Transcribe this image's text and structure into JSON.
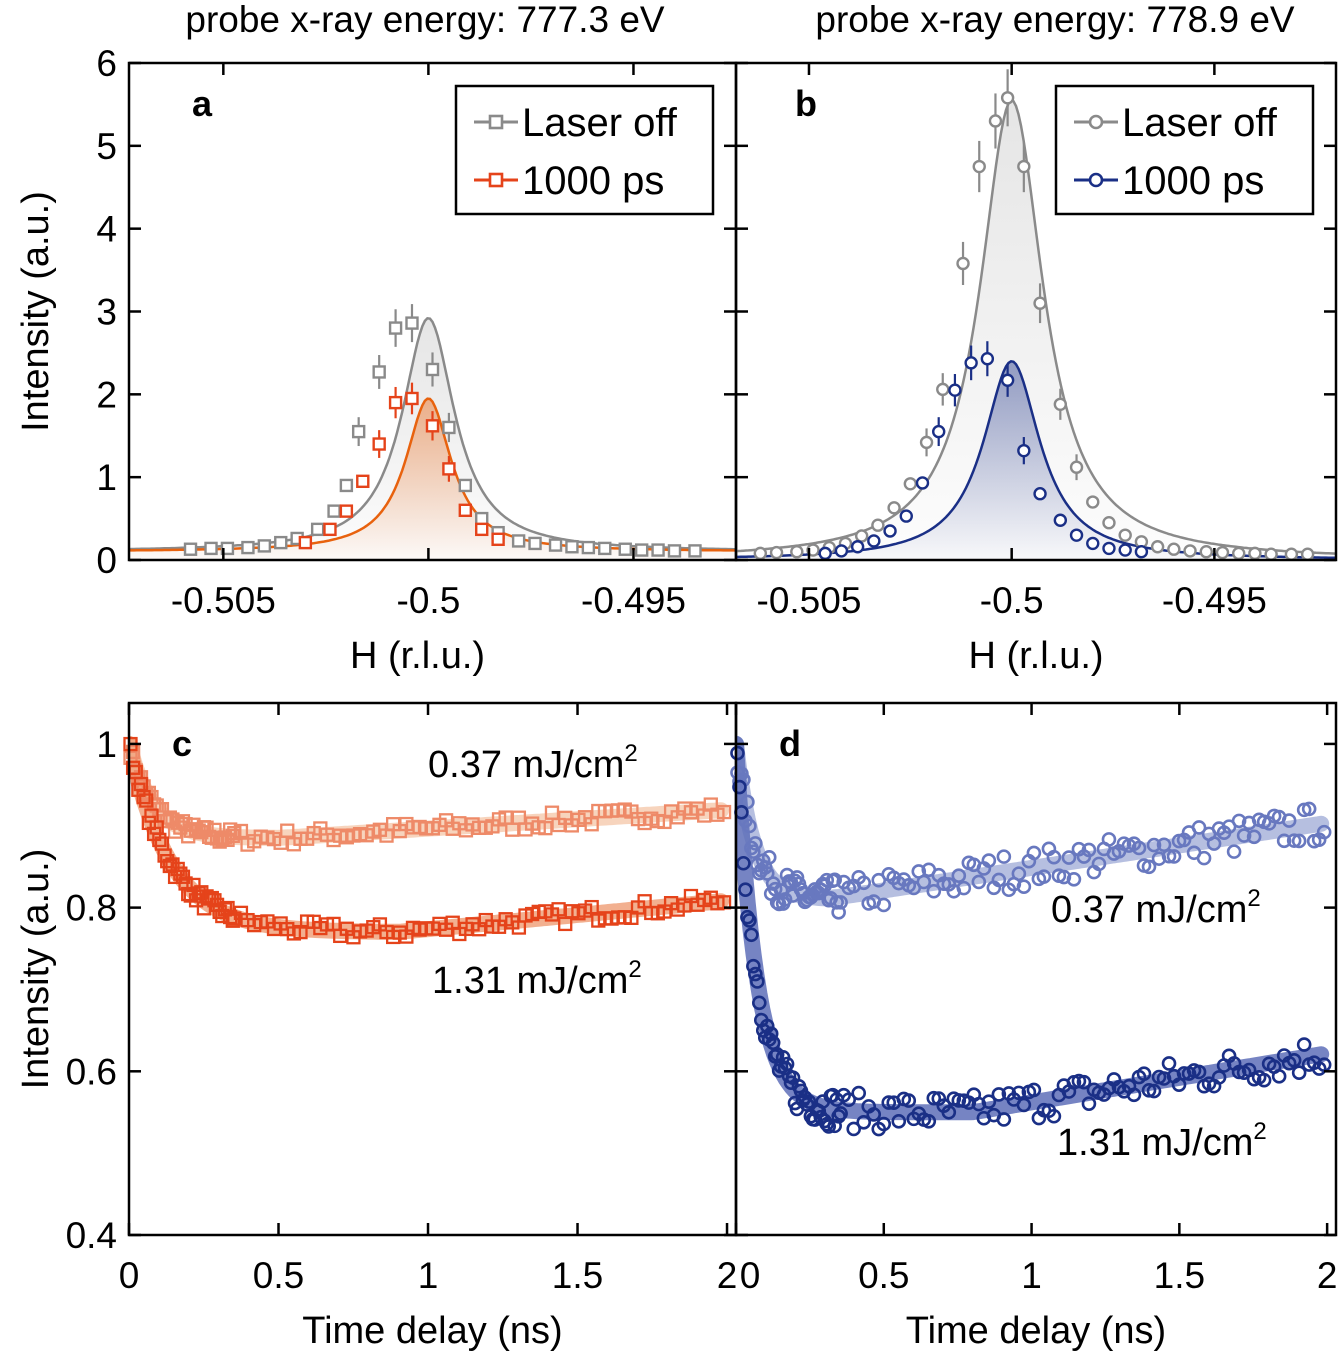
{
  "colors": {
    "gray": "#8a8a8a",
    "red": "#e5431a",
    "red_light": "#ee8a68",
    "orange_fit": "#e8620e",
    "navy": "#1a2f86",
    "blue_light": "#6878bf",
    "band_red_light": "#f6cdb2",
    "band_red": "#f0a27c",
    "band_blue_light": "#a9b4db",
    "band_blue": "#5e6fb8"
  },
  "chart_data": [
    {
      "id": "a",
      "type": "scatter",
      "panel_label": "a",
      "title": "probe x-ray energy: 777.3 eV",
      "xlabel": "H (r.l.u.)",
      "ylabel": "Intensity (a.u.)",
      "xlim": [
        -0.5073,
        -0.4925
      ],
      "ylim": [
        0,
        6
      ],
      "xticks": [
        -0.505,
        -0.5,
        -0.495
      ],
      "xtick_labels": [
        "-0.505",
        "-0.5",
        "-0.495"
      ],
      "yticks": [
        0,
        1,
        2,
        3,
        4,
        5,
        6
      ],
      "ytick_labels": [
        "0",
        "1",
        "2",
        "3",
        "4",
        "5",
        "6"
      ],
      "marker": "square",
      "legend": "top-right",
      "series": [
        {
          "name": "Laser off",
          "color": "gray",
          "fit": {
            "amp": 2.82,
            "center": -0.5,
            "gamma": 0.00078,
            "base": 0.1
          },
          "points": [
            [
              -0.5058,
              0.13
            ],
            [
              -0.5053,
              0.14
            ],
            [
              -0.5049,
              0.14
            ],
            [
              -0.5044,
              0.15
            ],
            [
              -0.504,
              0.17
            ],
            [
              -0.5036,
              0.21
            ],
            [
              -0.5032,
              0.26
            ],
            [
              -0.5027,
              0.37
            ],
            [
              -0.5023,
              0.59
            ],
            [
              -0.502,
              0.9
            ],
            [
              -0.5017,
              1.55
            ],
            [
              -0.5012,
              2.27
            ],
            [
              -0.5008,
              2.8
            ],
            [
              -0.5004,
              2.86
            ],
            [
              -0.4999,
              2.3
            ],
            [
              -0.4995,
              1.6
            ],
            [
              -0.4991,
              0.9
            ],
            [
              -0.4987,
              0.5
            ],
            [
              -0.4983,
              0.33
            ],
            [
              -0.4978,
              0.23
            ],
            [
              -0.4974,
              0.2
            ],
            [
              -0.4969,
              0.18
            ],
            [
              -0.4965,
              0.16
            ],
            [
              -0.4961,
              0.15
            ],
            [
              -0.4957,
              0.14
            ],
            [
              -0.4952,
              0.13
            ],
            [
              -0.4948,
              0.12
            ],
            [
              -0.4944,
              0.12
            ],
            [
              -0.494,
              0.11
            ],
            [
              -0.4935,
              0.11
            ]
          ]
        },
        {
          "name": "1000 ps",
          "color": "red",
          "fit": {
            "amp": 1.85,
            "center": -0.5,
            "gamma": 0.00068,
            "base": 0.1
          },
          "points": [
            [
              -0.503,
              0.21
            ],
            [
              -0.5024,
              0.37
            ],
            [
              -0.502,
              0.59
            ],
            [
              -0.5016,
              0.95
            ],
            [
              -0.5012,
              1.4
            ],
            [
              -0.5008,
              1.9
            ],
            [
              -0.5004,
              1.95
            ],
            [
              -0.4999,
              1.62
            ],
            [
              -0.4995,
              1.1
            ],
            [
              -0.4991,
              0.6
            ],
            [
              -0.4987,
              0.37
            ],
            [
              -0.4983,
              0.25
            ]
          ]
        }
      ]
    },
    {
      "id": "b",
      "type": "scatter",
      "panel_label": "b",
      "title": "probe x-ray energy: 778.9 eV",
      "xlabel": "H (r.l.u.)",
      "ylabel": "",
      "xlim": [
        -0.5068,
        -0.492
      ],
      "ylim": [
        0,
        6
      ],
      "xticks": [
        -0.505,
        -0.5,
        -0.495
      ],
      "xtick_labels": [
        "-0.505",
        "-0.5",
        "-0.495"
      ],
      "yticks": [
        0,
        1,
        2,
        3,
        4,
        5,
        6
      ],
      "marker": "circle",
      "legend": "top-right",
      "series": [
        {
          "name": "Laser off",
          "color": "gray",
          "fit": {
            "amp": 5.55,
            "center": -0.5,
            "gamma": 0.00095,
            "base": 0.0
          },
          "points": [
            [
              -0.5062,
              0.08
            ],
            [
              -0.5058,
              0.09
            ],
            [
              -0.5053,
              0.1
            ],
            [
              -0.5049,
              0.12
            ],
            [
              -0.5045,
              0.15
            ],
            [
              -0.5041,
              0.2
            ],
            [
              -0.5037,
              0.29
            ],
            [
              -0.5033,
              0.42
            ],
            [
              -0.5029,
              0.63
            ],
            [
              -0.5025,
              0.92
            ],
            [
              -0.5021,
              1.42
            ],
            [
              -0.5017,
              2.06
            ],
            [
              -0.5012,
              3.58
            ],
            [
              -0.5008,
              4.75
            ],
            [
              -0.5004,
              5.3
            ],
            [
              -0.5001,
              5.58
            ],
            [
              -0.4997,
              4.75
            ],
            [
              -0.4993,
              3.1
            ],
            [
              -0.4988,
              1.88
            ],
            [
              -0.4984,
              1.12
            ],
            [
              -0.498,
              0.7
            ],
            [
              -0.4976,
              0.45
            ],
            [
              -0.4972,
              0.3
            ],
            [
              -0.4968,
              0.22
            ],
            [
              -0.4964,
              0.16
            ],
            [
              -0.496,
              0.13
            ],
            [
              -0.4956,
              0.11
            ],
            [
              -0.4952,
              0.1
            ],
            [
              -0.4948,
              0.09
            ],
            [
              -0.4944,
              0.08
            ],
            [
              -0.494,
              0.08
            ],
            [
              -0.4936,
              0.07
            ],
            [
              -0.4931,
              0.07
            ],
            [
              -0.4927,
              0.07
            ]
          ]
        },
        {
          "name": "1000 ps",
          "color": "navy",
          "fit": {
            "amp": 2.4,
            "center": -0.5,
            "gamma": 0.00085,
            "base": 0.0
          },
          "points": [
            [
              -0.5046,
              0.08
            ],
            [
              -0.5042,
              0.11
            ],
            [
              -0.5038,
              0.16
            ],
            [
              -0.5034,
              0.23
            ],
            [
              -0.503,
              0.35
            ],
            [
              -0.5026,
              0.53
            ],
            [
              -0.5022,
              0.93
            ],
            [
              -0.5018,
              1.55
            ],
            [
              -0.5014,
              2.05
            ],
            [
              -0.501,
              2.38
            ],
            [
              -0.5006,
              2.43
            ],
            [
              -0.5001,
              2.17
            ],
            [
              -0.4997,
              1.32
            ],
            [
              -0.4993,
              0.8
            ],
            [
              -0.4988,
              0.48
            ],
            [
              -0.4984,
              0.3
            ],
            [
              -0.498,
              0.2
            ],
            [
              -0.4976,
              0.14
            ],
            [
              -0.4972,
              0.12
            ],
            [
              -0.4968,
              0.1
            ]
          ]
        }
      ]
    },
    {
      "id": "c",
      "type": "scatter",
      "panel_label": "c",
      "xlabel": "Time delay (ns)",
      "ylabel": "Intensity (a.u.)",
      "xlim": [
        0,
        2.03
      ],
      "ylim": [
        0.4,
        1.05
      ],
      "xticks": [
        0,
        0.5,
        1,
        1.5,
        2
      ],
      "xtick_labels": [
        "0",
        "0.5",
        "1",
        "1.5",
        "2"
      ],
      "yticks": [
        0.4,
        0.6,
        0.8,
        1.0
      ],
      "ytick_labels": [
        "0.4",
        "0.6",
        "0.8",
        "1"
      ],
      "marker": "square",
      "series": [
        {
          "name": "0.37 mJ/cm2",
          "color": "red_light",
          "band_color": "band_red_light",
          "model": {
            "y0": 1.0,
            "amp": 0.115,
            "tau": 0.08,
            "rec_start": 0.5,
            "rec_slope": 0.023
          },
          "label": {
            "text": "0.37 mJ/cm",
            "sup": "2"
          }
        },
        {
          "name": "1.31 mJ/cm2",
          "color": "red",
          "band_color": "band_red",
          "model": {
            "y0": 1.0,
            "amp": 0.23,
            "tau": 0.14,
            "rec_start": 0.9,
            "rec_slope": 0.035
          },
          "label": {
            "text": "1.31 mJ/cm",
            "sup": "2"
          }
        }
      ]
    },
    {
      "id": "d",
      "type": "scatter",
      "panel_label": "d",
      "xlabel": "Time delay (ns)",
      "ylabel": "",
      "xlim": [
        0,
        2.03
      ],
      "ylim": [
        0.4,
        1.05
      ],
      "xticks": [
        0,
        0.5,
        1,
        1.5,
        2
      ],
      "xtick_labels": [
        "0",
        "0.5",
        "1",
        "1.5",
        "2"
      ],
      "yticks": [
        0.4,
        0.6,
        0.8,
        1.0
      ],
      "marker": "circle",
      "series": [
        {
          "name": "0.37 mJ/cm2",
          "color": "blue_light",
          "band_color": "band_blue_light",
          "model": {
            "y0": 1.0,
            "amp": 0.19,
            "tau": 0.06,
            "rec_start": 0.3,
            "rec_slope": 0.055
          },
          "label": {
            "text": "0.37 mJ/cm",
            "sup": "2"
          }
        },
        {
          "name": "1.31 mJ/cm2",
          "color": "navy",
          "band_color": "band_blue",
          "model": {
            "y0": 1.0,
            "amp": 0.45,
            "tau": 0.07,
            "rec_start": 0.8,
            "rec_slope": 0.06
          },
          "label": {
            "text": "1.31 mJ/cm",
            "sup": "2"
          }
        }
      ]
    }
  ]
}
